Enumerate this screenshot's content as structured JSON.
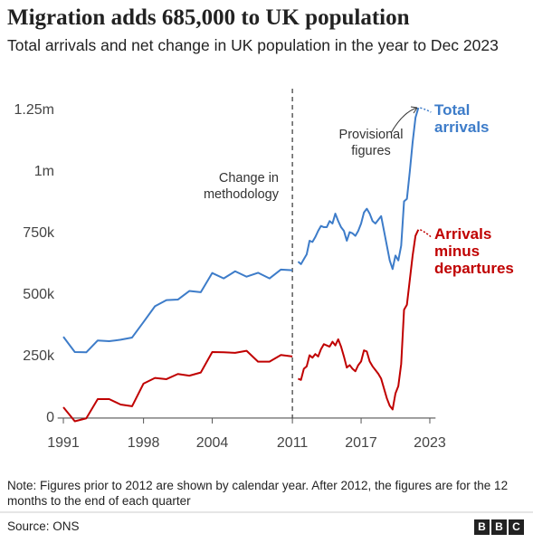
{
  "chart_data": {
    "type": "line",
    "title": "Migration adds 685,000 to UK population",
    "subtitle": "Total arrivals and net change in UK population in the year to Dec 2023",
    "x": [
      1991,
      1992,
      1993,
      1994,
      1995,
      1996,
      1997,
      1998,
      1999,
      2000,
      2001,
      2002,
      2003,
      2004,
      2005,
      2006,
      2007,
      2008,
      2009,
      2010,
      2011,
      2011.25,
      2011.5,
      2011.75,
      2012,
      2012.25,
      2012.5,
      2012.75,
      2013,
      2013.25,
      2013.5,
      2013.75,
      2014,
      2014.25,
      2014.5,
      2014.75,
      2015,
      2015.25,
      2015.5,
      2015.75,
      2016,
      2016.25,
      2016.5,
      2016.75,
      2017,
      2017.25,
      2017.5,
      2017.75,
      2018,
      2018.25,
      2018.5,
      2018.75,
      2019,
      2019.25,
      2019.5,
      2019.75,
      2020,
      2020.25,
      2020.5,
      2020.75,
      2021,
      2021.25,
      2021.5,
      2021.75,
      2022
    ],
    "series": [
      {
        "name": "Total arrivals",
        "color": "#3d7cc9",
        "values": [
          330000,
          268000,
          267000,
          315000,
          312000,
          318000,
          327000,
          390000,
          454000,
          479000,
          481000,
          516000,
          511000,
          589000,
          567000,
          596000,
          574000,
          590000,
          567000,
          603000,
          600000,
          null,
          635000,
          625000,
          645000,
          665000,
          720000,
          715000,
          735000,
          760000,
          780000,
          775000,
          775000,
          800000,
          790000,
          830000,
          800000,
          775000,
          760000,
          720000,
          755000,
          750000,
          740000,
          760000,
          790000,
          835000,
          850000,
          830000,
          800000,
          790000,
          805000,
          820000,
          760000,
          700000,
          640000,
          605000,
          660000,
          640000,
          700000,
          880000,
          890000,
          1000000,
          1120000,
          1220000,
          1260000
        ]
      },
      {
        "name": "Arrivals minus departures",
        "color": "#c00000",
        "values": [
          44000,
          -13000,
          -1000,
          77000,
          77000,
          55000,
          48000,
          140000,
          163000,
          158000,
          179000,
          172000,
          185000,
          268000,
          267000,
          265000,
          273000,
          229000,
          229000,
          256000,
          250000,
          null,
          160000,
          155000,
          200000,
          210000,
          255000,
          245000,
          260000,
          250000,
          280000,
          300000,
          295000,
          290000,
          310000,
          295000,
          320000,
          290000,
          250000,
          205000,
          215000,
          200000,
          190000,
          215000,
          230000,
          275000,
          270000,
          230000,
          210000,
          195000,
          180000,
          160000,
          120000,
          80000,
          50000,
          35000,
          100000,
          130000,
          220000,
          440000,
          460000,
          560000,
          660000,
          740000,
          765000
        ]
      }
    ],
    "xlim": [
      1990.5,
      2023.5
    ],
    "xticks": [
      1991,
      1998,
      2004,
      2011,
      2017,
      2023
    ],
    "ylim": [
      -20000,
      1330000
    ],
    "yticks": [
      0,
      {
        "value": 250000,
        "label": "250k"
      },
      {
        "value": 500000,
        "label": "500k"
      },
      {
        "value": 750000,
        "label": "750k"
      },
      {
        "value": 1000000,
        "label": "1m"
      },
      {
        "value": 1250000,
        "label": "1.25m"
      }
    ],
    "grid": false,
    "divider": {
      "x": 2011,
      "label": "Change in methodology"
    },
    "annotation": "Provisional figures",
    "note": "Note: Figures prior to 2012 are shown by calendar year. After 2012, the figures are for the 12 months to the end of each quarter",
    "source": "Source: ONS",
    "logo": [
      "B",
      "B",
      "C"
    ]
  }
}
